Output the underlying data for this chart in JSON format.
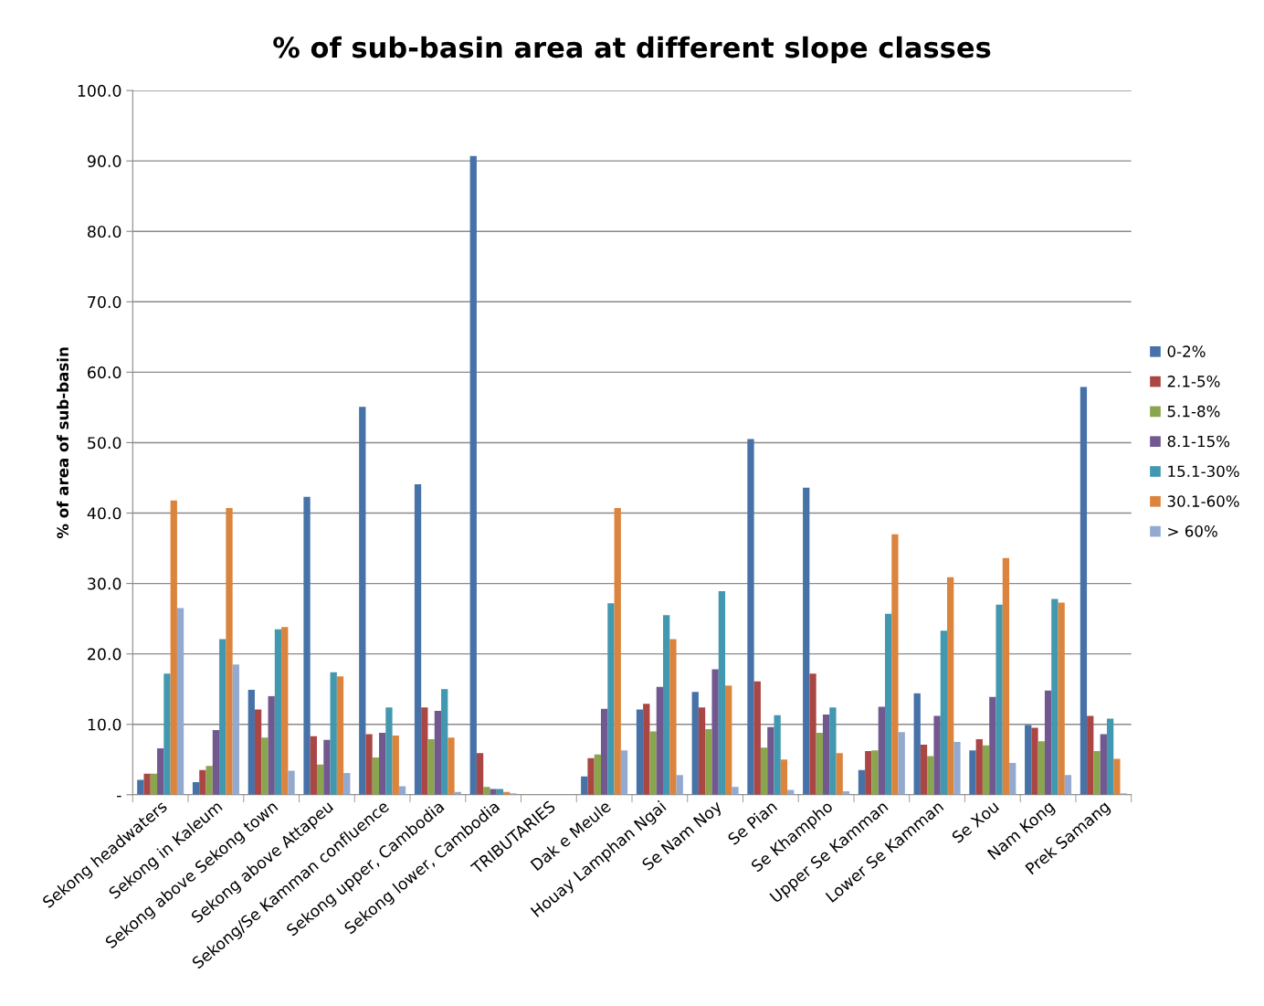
{
  "chart_data": {
    "type": "bar",
    "title": "% of sub-basin area at different slope classes",
    "ylabel": "% of area of sub-basin",
    "categories": [
      "Sekong headwaters",
      "Sekong in Kaleum",
      "Sekong above Sekong town",
      "Sekong above Attapeu",
      "Sekong/Se Kamman confluence",
      "Sekong upper, Cambodia",
      "Sekong lower, Cambodia",
      "TRIBUTARIES",
      "Dak e Meule",
      "Houay Lamphan Ngai",
      "Se Nam Noy",
      "Se Pian",
      "Se Khampho",
      "Upper Se Kamman",
      "Lower Se Kamman",
      "Se Xou",
      "Nam Kong",
      "Prek Samang"
    ],
    "series": [
      {
        "name": "0-2%",
        "color": "#4672a8",
        "values": [
          2.1,
          1.8,
          14.9,
          42.3,
          55.1,
          44.1,
          90.7,
          null,
          2.6,
          12.1,
          14.6,
          50.5,
          43.6,
          3.5,
          14.4,
          6.3,
          9.9,
          57.9
        ]
      },
      {
        "name": "2.1-5%",
        "color": "#aa4644",
        "values": [
          3.0,
          3.5,
          12.1,
          8.3,
          8.6,
          12.4,
          5.9,
          null,
          5.2,
          12.9,
          12.4,
          16.1,
          17.2,
          6.2,
          7.1,
          7.9,
          9.5,
          11.2
        ]
      },
      {
        "name": "5.1-8%",
        "color": "#89a54e",
        "values": [
          3.0,
          4.1,
          8.1,
          4.3,
          5.3,
          7.9,
          1.1,
          null,
          5.7,
          9.0,
          9.3,
          6.7,
          8.8,
          6.3,
          5.5,
          7.0,
          7.6,
          6.2
        ]
      },
      {
        "name": "8.1-15%",
        "color": "#71588f",
        "values": [
          6.6,
          9.2,
          14.0,
          7.8,
          8.8,
          11.9,
          0.8,
          null,
          12.2,
          15.3,
          17.8,
          9.6,
          11.4,
          12.5,
          11.2,
          13.9,
          14.8,
          8.6
        ]
      },
      {
        "name": "15.1-30%",
        "color": "#4198af",
        "values": [
          17.2,
          22.1,
          23.5,
          17.4,
          12.4,
          15.0,
          0.8,
          null,
          27.2,
          25.5,
          28.9,
          11.3,
          12.4,
          25.7,
          23.3,
          27.0,
          27.8,
          10.8
        ]
      },
      {
        "name": "30.1-60%",
        "color": "#db843d",
        "values": [
          41.8,
          40.7,
          23.8,
          16.8,
          8.4,
          8.1,
          0.4,
          null,
          40.7,
          22.1,
          15.5,
          5.0,
          5.9,
          37.0,
          30.9,
          33.6,
          27.3,
          5.1
        ]
      },
      {
        "name": "> 60%",
        "color": "#93a9cf",
        "values": [
          26.5,
          18.5,
          3.4,
          3.1,
          1.2,
          0.4,
          0.2,
          null,
          6.3,
          2.8,
          1.1,
          0.7,
          0.5,
          8.9,
          7.5,
          4.5,
          2.8,
          0.2
        ]
      }
    ],
    "ylim": [
      0,
      100
    ],
    "yticks": [
      {
        "value": 0,
        "label": "-"
      },
      {
        "value": 10,
        "label": "10.0"
      },
      {
        "value": 20,
        "label": "20.0"
      },
      {
        "value": 30,
        "label": "30.0"
      },
      {
        "value": 40,
        "label": "40.0"
      },
      {
        "value": 50,
        "label": "50.0"
      },
      {
        "value": 60,
        "label": "60.0"
      },
      {
        "value": 70,
        "label": "70.0"
      },
      {
        "value": 80,
        "label": "80.0"
      },
      {
        "value": 90,
        "label": "90.0"
      },
      {
        "value": 100,
        "label": "100.0"
      }
    ],
    "grid": "y",
    "legend": "right"
  }
}
